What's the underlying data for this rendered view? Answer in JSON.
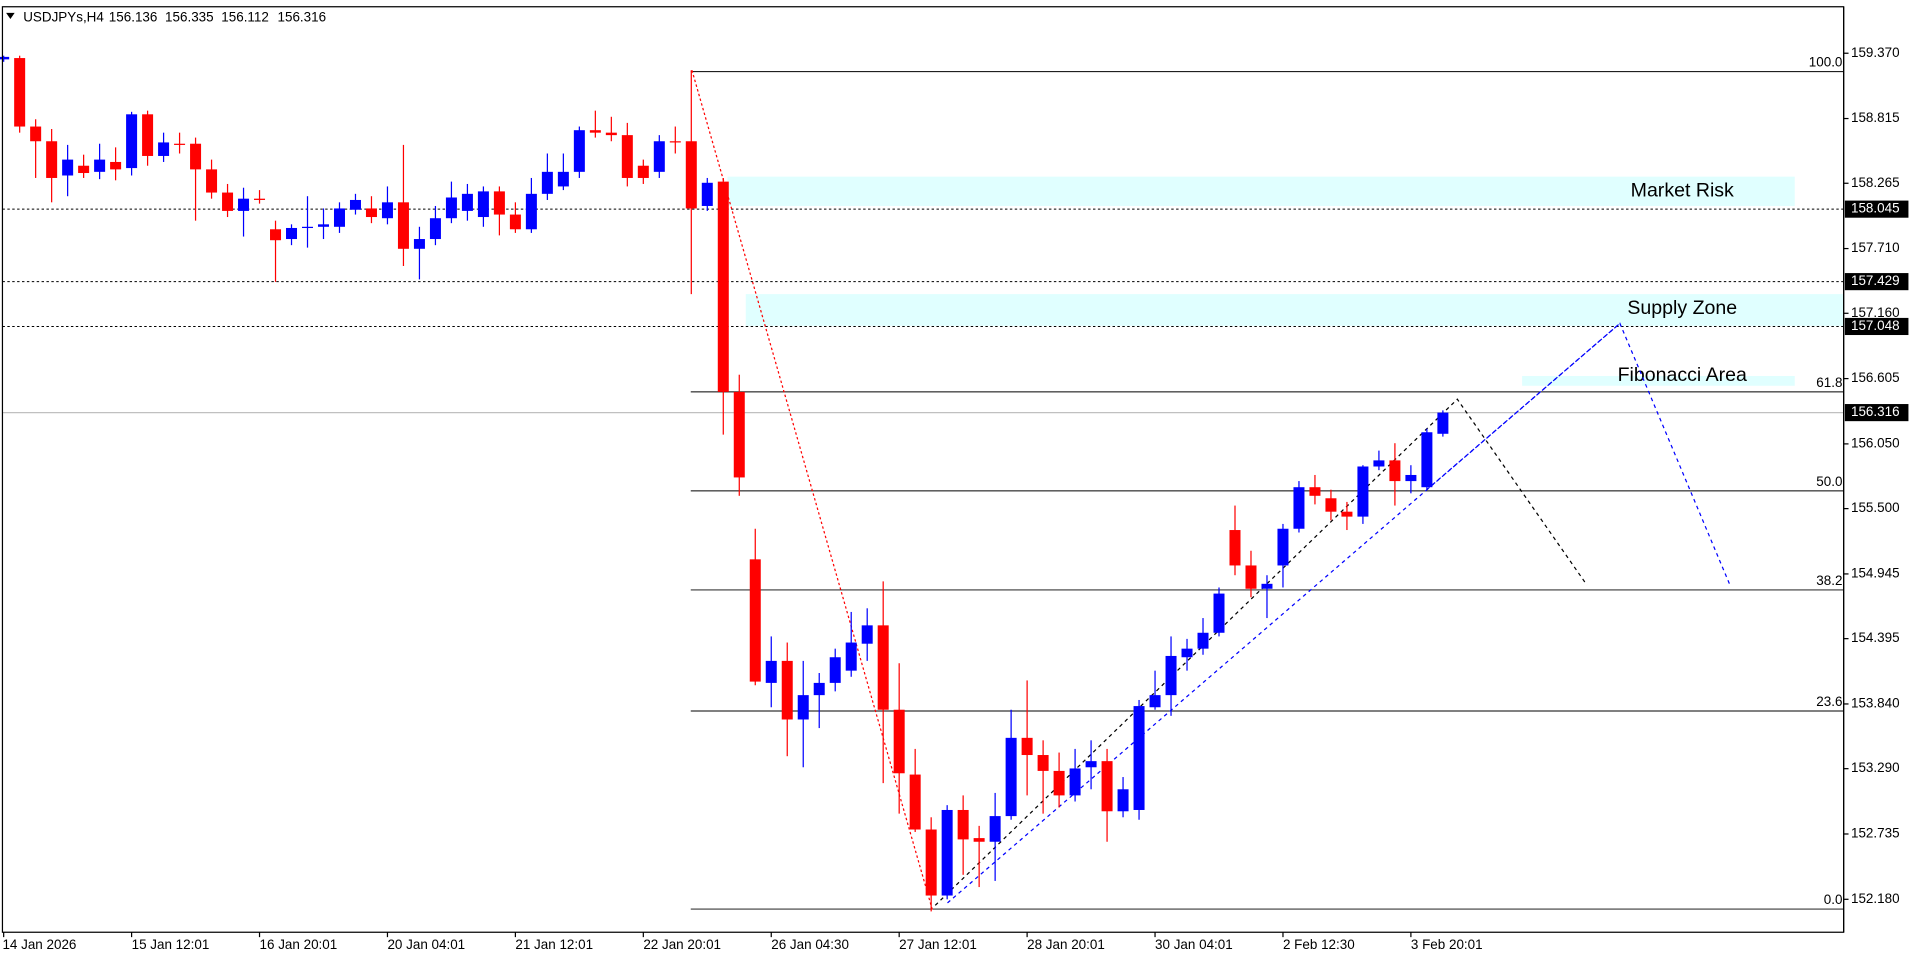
{
  "chart_data": {
    "type": "candlestick",
    "symbol": "USDJPYs,H4",
    "quote": [
      156.136,
      156.335,
      156.112,
      156.316
    ],
    "up_color": "#0000ff",
    "down_color": "#ff0000",
    "categories": [
      "14 Jan 2026",
      null,
      null,
      null,
      null,
      null,
      null,
      null,
      "15 Jan 12:01",
      null,
      null,
      null,
      null,
      null,
      null,
      null,
      "16 Jan 20:01",
      null,
      null,
      null,
      null,
      null,
      null,
      null,
      "20 Jan 04:01",
      null,
      null,
      null,
      null,
      null,
      null,
      null,
      "21 Jan 12:01",
      null,
      null,
      null,
      null,
      null,
      null,
      null,
      "22 Jan 20:01",
      null,
      null,
      null,
      null,
      null,
      null,
      null,
      "26 Jan 04:30",
      null,
      null,
      null,
      null,
      null,
      null,
      null,
      "27 Jan 12:01",
      null,
      null,
      null,
      null,
      null,
      null,
      null,
      "28 Jan 20:01",
      null,
      null,
      null,
      null,
      null,
      null,
      null,
      "30 Jan 04:01",
      null,
      null,
      null,
      null,
      null,
      null,
      null,
      "2 Feb 12:30",
      null,
      null,
      null,
      null,
      null,
      null,
      null,
      "3 Feb 20:01",
      null,
      null
    ],
    "open": [
      159.318,
      159.329,
      158.747,
      158.622,
      158.331,
      158.414,
      158.362,
      158.446,
      158.394,
      158.851,
      158.497,
      158.601,
      158.601,
      158.383,
      158.186,
      158.03,
      158.134,
      157.874,
      157.791,
      157.885,
      157.895,
      157.895,
      158.04,
      158.051,
      157.968,
      158.103,
      157.708,
      157.791,
      157.968,
      158.03,
      157.978,
      158.196,
      157.999,
      157.874,
      158.175,
      158.238,
      158.362,
      158.716,
      158.695,
      158.674,
      158.414,
      158.362,
      158.622,
      158.622,
      158.072,
      158.279,
      156.492,
      155.069,
      154.019,
      154.206,
      153.708,
      153.915,
      154.019,
      154.123,
      154.352,
      154.508,
      153.791,
      153.24,
      152.773,
      152.212,
      152.939,
      152.7,
      152.669,
      152.887,
      153.552,
      153.406,
      153.271,
      153.063,
      153.302,
      153.354,
      152.928,
      152.939,
      153.812,
      153.915,
      154.237,
      154.31,
      154.445,
      155.318,
      155.017,
      154.819,
      155.017,
      155.329,
      155.682,
      155.588,
      155.474,
      155.432,
      155.858,
      155.91,
      155.734,
      155.682,
      156.136
    ],
    "high": [
      159.349,
      159.349,
      158.809,
      158.726,
      158.591,
      158.508,
      158.601,
      158.57,
      158.872,
      158.882,
      158.695,
      158.695,
      158.653,
      158.466,
      158.259,
      158.227,
      158.207,
      157.947,
      157.916,
      158.155,
      158.051,
      158.103,
      158.175,
      158.155,
      158.238,
      158.591,
      157.895,
      158.072,
      158.279,
      158.259,
      158.238,
      158.238,
      158.103,
      158.31,
      158.518,
      158.518,
      158.747,
      158.882,
      158.83,
      158.778,
      158.466,
      158.674,
      158.747,
      159.225,
      158.31,
      158.31,
      156.638,
      155.329,
      154.414,
      154.362,
      154.206,
      154.103,
      154.31,
      154.622,
      154.653,
      154.882,
      154.186,
      153.458,
      152.877,
      152.98,
      153.063,
      152.804,
      153.084,
      153.791,
      154.04,
      153.531,
      153.427,
      153.458,
      153.531,
      153.458,
      153.219,
      153.874,
      154.123,
      154.414,
      154.393,
      154.57,
      154.83,
      155.526,
      155.142,
      154.934,
      155.37,
      155.734,
      155.786,
      155.661,
      155.557,
      155.869,
      155.993,
      156.056,
      155.869,
      156.18,
      156.335
    ],
    "low": [
      159.297,
      158.695,
      158.31,
      158.103,
      158.155,
      158.31,
      158.3,
      158.29,
      158.331,
      158.414,
      158.446,
      158.518,
      157.947,
      158.134,
      157.978,
      157.812,
      158.092,
      157.427,
      157.739,
      157.718,
      157.791,
      157.843,
      157.999,
      157.926,
      157.916,
      157.562,
      157.448,
      157.739,
      157.926,
      157.947,
      157.895,
      157.822,
      157.843,
      157.843,
      158.123,
      158.207,
      158.31,
      158.653,
      158.622,
      158.238,
      158.259,
      158.31,
      158.518,
      157.323,
      158.03,
      156.129,
      155.609,
      153.999,
      153.812,
      153.396,
      153.302,
      153.635,
      153.947,
      154.071,
      154.206,
      153.167,
      152.908,
      152.752,
      152.077,
      152.18,
      152.388,
      152.284,
      152.336,
      152.856,
      153.063,
      152.908,
      152.96,
      153.011,
      153.115,
      152.669,
      152.877,
      152.856,
      153.791,
      153.739,
      154.123,
      154.258,
      154.414,
      154.934,
      154.747,
      154.57,
      154.83,
      155.297,
      155.536,
      155.401,
      155.318,
      155.37,
      155.827,
      155.526,
      155.63,
      155.661,
      156.112
    ],
    "close": [
      159.339,
      158.747,
      158.622,
      158.31,
      158.466,
      158.352,
      158.466,
      158.383,
      158.851,
      158.497,
      158.612,
      158.591,
      158.383,
      158.186,
      158.03,
      158.134,
      158.123,
      157.781,
      157.885,
      157.895,
      157.916,
      158.051,
      158.123,
      157.978,
      158.103,
      157.708,
      157.791,
      157.968,
      158.144,
      158.175,
      158.196,
      157.999,
      157.874,
      158.175,
      158.362,
      158.362,
      158.716,
      158.695,
      158.674,
      158.31,
      158.31,
      158.622,
      158.612,
      158.051,
      158.269,
      156.492,
      155.765,
      154.03,
      154.206,
      153.708,
      153.915,
      154.019,
      154.237,
      154.362,
      154.508,
      153.791,
      153.251,
      152.773,
      152.212,
      152.939,
      152.689,
      152.669,
      152.887,
      153.552,
      153.406,
      153.271,
      153.063,
      153.292,
      153.354,
      152.928,
      153.115,
      153.822,
      153.915,
      154.248,
      154.31,
      154.445,
      154.778,
      155.017,
      154.819,
      154.861,
      155.329,
      155.682,
      155.609,
      155.474,
      155.432,
      155.858,
      155.91,
      155.734,
      155.786,
      156.149,
      156.316
    ],
    "ylim": [
      151.9,
      159.765
    ],
    "yticks": [
      {
        "value": 159.37,
        "label": "159.370"
      },
      158.815,
      158.265,
      {
        "value": 157.71,
        "label": "157.710"
      },
      {
        "value": 157.16,
        "label": "157.160"
      },
      156.605,
      {
        "value": 156.05,
        "label": "156.050"
      },
      {
        "value": 155.5,
        "label": "155.500"
      },
      154.945,
      154.395,
      {
        "value": 153.84,
        "label": "153.840"
      },
      {
        "value": 153.29,
        "label": "153.290"
      },
      152.735,
      {
        "value": 152.18,
        "label": "152.180"
      }
    ],
    "price_levels": [
      158.045,
      157.429,
      157.048
    ],
    "current_price": 156.316,
    "fibonacci": [
      {
        "label": "100.0",
        "price": 159.214
      },
      {
        "label": "61.8",
        "price": 156.492
      },
      {
        "label": "50.0",
        "price": 155.651
      },
      {
        "label": "38.2",
        "price": 154.809
      },
      {
        "label": "23.6",
        "price": 153.78
      },
      {
        "label": "0.0",
        "price": 152.097
      }
    ],
    "zones": [
      {
        "label": "Market Risk",
        "from": 158.072,
        "to": 158.321,
        "color": "#e0ffff"
      },
      {
        "label": "Supply Zone",
        "from": 157.053,
        "to": 157.323,
        "color": "#e0ffff"
      },
      {
        "label": "Fibonacci Area",
        "from": 156.544,
        "to": 156.627,
        "color": "#e0ffff"
      }
    ]
  }
}
